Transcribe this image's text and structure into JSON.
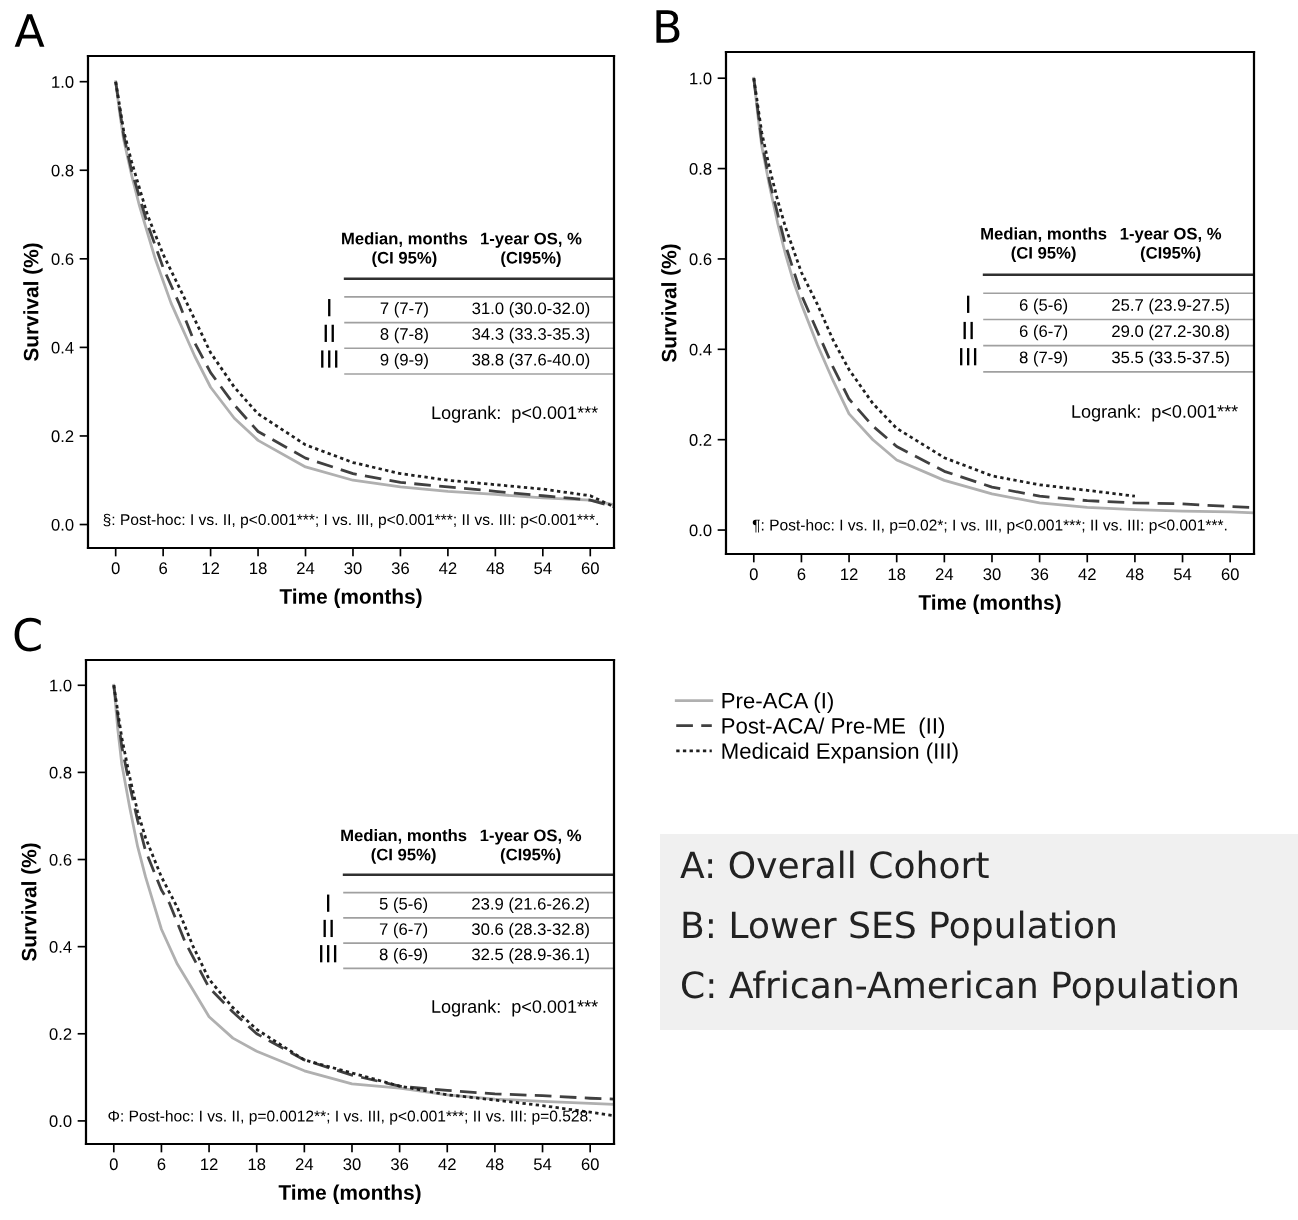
{
  "chart_data": [
    {
      "type": "line",
      "title": "A",
      "xlabel": "Time (months)",
      "ylabel": "Survival (%)",
      "xlim": [
        -3.5,
        63
      ],
      "ylim": [
        -0.053,
        1.058
      ],
      "xticks": [
        0,
        6,
        12,
        18,
        24,
        30,
        36,
        42,
        48,
        54,
        60
      ],
      "yticks": [
        {
          "value": 0,
          "label": "0.0"
        },
        {
          "value": 0.2,
          "label": "0.2"
        },
        {
          "value": 0.4,
          "label": "0.4"
        },
        {
          "value": 0.6,
          "label": "0.6"
        },
        {
          "value": 0.8,
          "label": "0.8"
        },
        {
          "value": 1,
          "label": "1.0"
        }
      ],
      "grid": false,
      "legend": false,
      "marker": "none",
      "series": [
        {
          "color": "#b0b0b0",
          "line_style": "solid",
          "x": [
            0,
            0.5,
            1,
            2,
            3,
            4,
            5,
            6,
            7,
            8,
            9,
            10,
            12,
            15,
            18,
            24,
            30,
            36,
            42,
            48,
            54,
            60,
            63
          ],
          "values": [
            1,
            0.93,
            0.87,
            0.79,
            0.72,
            0.66,
            0.6,
            0.55,
            0.5,
            0.46,
            0.42,
            0.38,
            0.31,
            0.24,
            0.19,
            0.13,
            0.1,
            0.085,
            0.075,
            0.068,
            0.06,
            0.055,
            0.045
          ]
        },
        {
          "color": "#404040",
          "line_style": "dashed",
          "x": [
            0,
            0.5,
            1,
            2,
            3,
            4,
            6,
            8,
            10,
            12,
            15,
            18,
            24,
            30,
            36,
            42,
            48,
            54,
            60,
            63
          ],
          "values": [
            1,
            0.94,
            0.88,
            0.8,
            0.74,
            0.68,
            0.58,
            0.5,
            0.41,
            0.343,
            0.27,
            0.21,
            0.15,
            0.115,
            0.095,
            0.085,
            0.075,
            0.065,
            0.055,
            0.04
          ]
        },
        {
          "color": "#202020",
          "line_style": "dotted",
          "x": [
            0,
            1,
            2,
            3,
            4,
            6,
            9,
            12,
            15,
            18,
            24,
            30,
            36,
            42,
            48,
            54,
            60,
            63
          ],
          "values": [
            1,
            0.89,
            0.82,
            0.76,
            0.7,
            0.61,
            0.5,
            0.388,
            0.31,
            0.25,
            0.18,
            0.14,
            0.115,
            0.1,
            0.09,
            0.08,
            0.065,
            0.04
          ]
        }
      ],
      "annotations": [
        "Median, months\n(CI 95%)",
        "1-year OS, %\n(CI95%)",
        "I",
        "7 (7-7)",
        "31.0 (30.0-32.0)",
        "II",
        "8 (7-8)",
        "34.3 (33.3-35.3)",
        "III",
        "9 (9-9)",
        "38.8 (37.6-40.0)",
        "Logrank:  p<0.001***",
        "§: Post-hoc: I vs. II, p<0.001***; I vs. III, p<0.001***; II vs. III: p<0.001***."
      ]
    },
    {
      "type": "line",
      "title": "B",
      "xlabel": "Time (months)",
      "ylabel": "Survival (%)",
      "xlim": [
        -3.5,
        63
      ],
      "ylim": [
        -0.053,
        1.058
      ],
      "xticks": [
        0,
        6,
        12,
        18,
        24,
        30,
        36,
        42,
        48,
        54,
        60
      ],
      "yticks": [
        {
          "value": 0,
          "label": "0.0"
        },
        {
          "value": 0.2,
          "label": "0.2"
        },
        {
          "value": 0.4,
          "label": "0.4"
        },
        {
          "value": 0.6,
          "label": "0.6"
        },
        {
          "value": 0.8,
          "label": "0.8"
        },
        {
          "value": 1,
          "label": "1.0"
        }
      ],
      "grid": false,
      "legend": false,
      "marker": "none",
      "series": [
        {
          "color": "#b0b0b0",
          "line_style": "solid",
          "x": [
            0,
            0.5,
            1,
            2,
            3,
            4,
            5,
            6,
            8,
            10,
            12,
            15,
            18,
            24,
            30,
            36,
            42,
            48,
            54,
            60,
            63
          ],
          "values": [
            1,
            0.92,
            0.85,
            0.76,
            0.68,
            0.61,
            0.55,
            0.5,
            0.41,
            0.33,
            0.257,
            0.2,
            0.155,
            0.11,
            0.08,
            0.06,
            0.05,
            0.045,
            0.042,
            0.04,
            0.038
          ]
        },
        {
          "color": "#404040",
          "line_style": "dashed",
          "x": [
            0,
            0.5,
            1,
            2,
            3,
            4,
            6,
            8,
            10,
            12,
            15,
            18,
            24,
            30,
            36,
            42,
            48,
            54,
            60,
            63
          ],
          "values": [
            1,
            0.93,
            0.86,
            0.77,
            0.7,
            0.63,
            0.52,
            0.44,
            0.36,
            0.29,
            0.23,
            0.185,
            0.13,
            0.095,
            0.075,
            0.065,
            0.06,
            0.058,
            0.052,
            0.05
          ]
        },
        {
          "color": "#202020",
          "line_style": "dotted",
          "x": [
            0,
            1,
            2,
            3,
            4,
            6,
            8,
            10,
            12,
            15,
            18,
            24,
            30,
            36,
            42,
            48
          ],
          "values": [
            1,
            0.88,
            0.8,
            0.73,
            0.67,
            0.57,
            0.5,
            0.42,
            0.355,
            0.28,
            0.225,
            0.16,
            0.12,
            0.1,
            0.088,
            0.075
          ]
        }
      ],
      "annotations": [
        "Median, months\n(CI 95%)",
        "1-year OS, %\n(CI95%)",
        "I",
        "6 (5-6)",
        "25.7 (23.9-27.5)",
        "II",
        "6 (6-7)",
        "29.0 (27.2-30.8)",
        "III",
        "8 (7-9)",
        "35.5 (33.5-37.5)",
        "Logrank:  p<0.001***",
        "¶: Post-hoc: I vs. II, p=0.02*; I vs. III, p<0.001***; II vs. III: p<0.001***."
      ]
    },
    {
      "type": "line",
      "title": "C",
      "xlabel": "Time (months)",
      "ylabel": "Survival (%)",
      "xlim": [
        -3.5,
        63
      ],
      "ylim": [
        -0.053,
        1.058
      ],
      "xticks": [
        0,
        6,
        12,
        18,
        24,
        30,
        36,
        42,
        48,
        54,
        60
      ],
      "yticks": [
        {
          "value": 0,
          "label": "0.0"
        },
        {
          "value": 0.2,
          "label": "0.2"
        },
        {
          "value": 0.4,
          "label": "0.4"
        },
        {
          "value": 0.6,
          "label": "0.6"
        },
        {
          "value": 0.8,
          "label": "0.8"
        },
        {
          "value": 1,
          "label": "1.0"
        }
      ],
      "grid": false,
      "legend": "right",
      "marker": "none",
      "series": [
        {
          "name": "Pre-ACA (I)",
          "color": "#b0b0b0",
          "line_style": "solid",
          "x": [
            0,
            0.5,
            1,
            2,
            3,
            4,
            5,
            6,
            8,
            10,
            12,
            15,
            18,
            24,
            30,
            36,
            42,
            48,
            54,
            60,
            63
          ],
          "values": [
            1,
            0.9,
            0.82,
            0.72,
            0.63,
            0.56,
            0.5,
            0.44,
            0.36,
            0.3,
            0.239,
            0.19,
            0.16,
            0.115,
            0.085,
            0.075,
            0.06,
            0.05,
            0.045,
            0.04,
            0.038
          ]
        },
        {
          "name": "Post-ACA/ Pre-ME  (II)",
          "color": "#404040",
          "line_style": "dashed",
          "x": [
            0,
            1,
            2,
            3,
            4,
            6,
            7,
            9,
            12,
            15,
            18,
            24,
            30,
            36,
            42,
            48,
            54,
            60,
            63
          ],
          "values": [
            1,
            0.86,
            0.77,
            0.69,
            0.62,
            0.53,
            0.5,
            0.41,
            0.306,
            0.25,
            0.2,
            0.14,
            0.105,
            0.08,
            0.07,
            0.062,
            0.058,
            0.052,
            0.05
          ]
        },
        {
          "name": "Medicaid Expansion (III)",
          "color": "#202020",
          "line_style": "dotted",
          "x": [
            0,
            1,
            2,
            3,
            4,
            6,
            8,
            10,
            12,
            15,
            18,
            24,
            30,
            36,
            42,
            48,
            54,
            60,
            63
          ],
          "values": [
            1,
            0.88,
            0.79,
            0.71,
            0.65,
            0.56,
            0.49,
            0.4,
            0.325,
            0.26,
            0.21,
            0.14,
            0.11,
            0.08,
            0.06,
            0.048,
            0.035,
            0.02,
            0.012
          ]
        }
      ],
      "annotations": [
        "Median, months\n(CI 95%)",
        "1-year OS, %\n(CI95%)",
        "I",
        "5 (5-6)",
        "23.9 (21.6-26.2)",
        "II",
        "7 (6-7)",
        "30.6 (28.3-32.8)",
        "III",
        "8 (6-9)",
        "32.5 (28.9-36.1)",
        "Logrank:  p<0.001***",
        "Φ: Post-hoc: I vs. II, p=0.0012**; I vs. III, p<0.001***; II vs. III: p=0.528."
      ]
    },
    {
      "type": "other",
      "annotations": [
        "A: Overall Cohort",
        "B: Lower SES Population",
        "C: African-American Population"
      ]
    }
  ]
}
